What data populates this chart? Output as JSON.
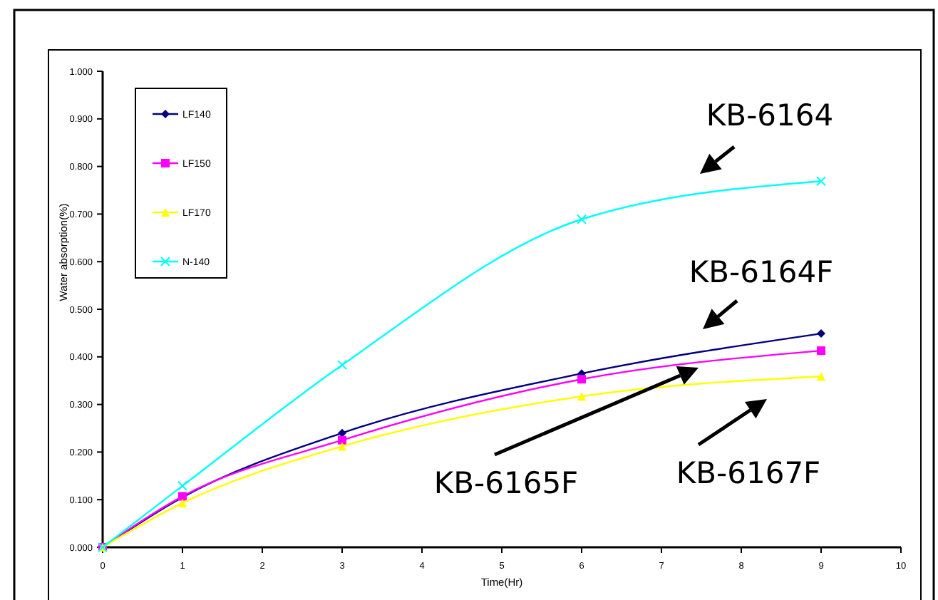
{
  "chart_data": {
    "type": "line",
    "xlabel": "Time(Hr)",
    "ylabel": "Water absorption(%)",
    "x": [
      0,
      1,
      3,
      6,
      9
    ],
    "series": [
      {
        "name": "LF140",
        "color": "#000080",
        "marker": "diamond",
        "values": [
          0,
          0.105,
          0.24,
          0.365,
          0.449
        ]
      },
      {
        "name": "LF150",
        "color": "#ff00ff",
        "marker": "square",
        "values": [
          0,
          0.107,
          0.225,
          0.353,
          0.413
        ]
      },
      {
        "name": "LF170",
        "color": "#ffff00",
        "marker": "triangle",
        "values": [
          0,
          0.093,
          0.212,
          0.317,
          0.359
        ]
      },
      {
        "name": "N-140",
        "color": "#00ffff",
        "marker": "cross",
        "values": [
          0,
          0.129,
          0.383,
          0.689,
          0.769
        ]
      }
    ],
    "xlim": [
      0,
      10
    ],
    "xticks": [
      0,
      1,
      2,
      3,
      4,
      5,
      6,
      7,
      8,
      9,
      10
    ],
    "ylim": [
      0,
      1
    ],
    "yticks": [
      {
        "value": 0,
        "label": "0.000"
      },
      {
        "value": 0.1,
        "label": "0.100"
      },
      {
        "value": 0.2,
        "label": "0.200"
      },
      {
        "value": 0.3,
        "label": "0.300"
      },
      {
        "value": 0.4,
        "label": "0.400"
      },
      {
        "value": 0.5,
        "label": "0.500"
      },
      {
        "value": 0.6,
        "label": "0.600"
      },
      {
        "value": 0.7,
        "label": "0.700"
      },
      {
        "value": 0.8,
        "label": "0.800"
      },
      {
        "value": 0.9,
        "label": "0.900"
      },
      {
        "value": 1,
        "label": "1.000"
      }
    ],
    "grid": false,
    "legend": "top left",
    "line_style": "solid",
    "annotations": [
      "KB-6164",
      "KB-6164F",
      "KB-6165F",
      "KB-6167F"
    ]
  }
}
